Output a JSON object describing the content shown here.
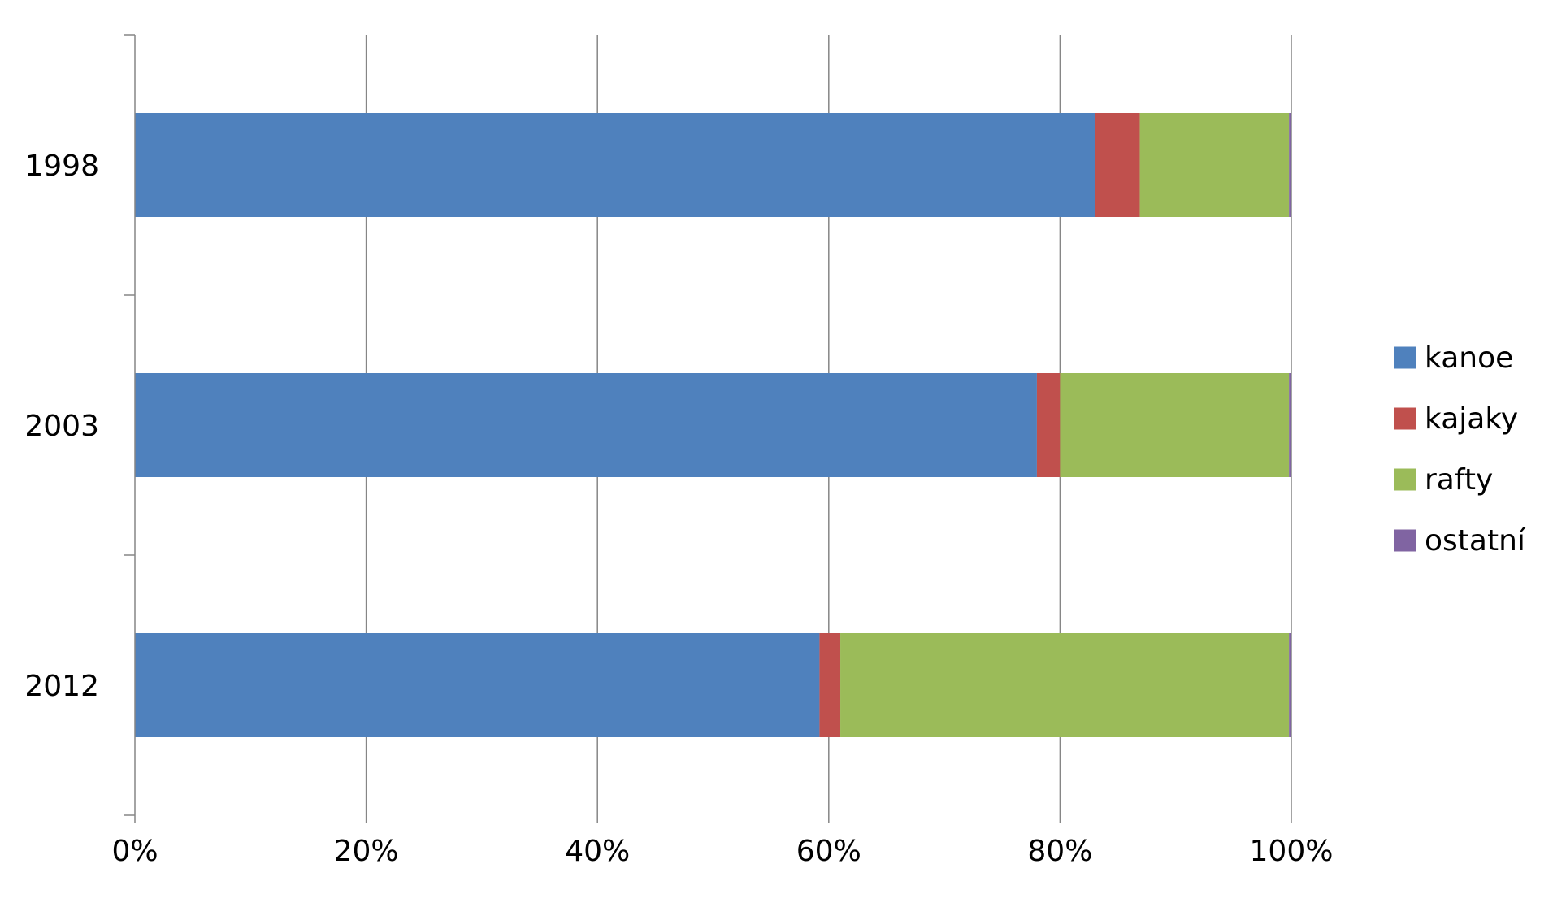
{
  "chart_data": {
    "type": "bar",
    "orientation": "horizontal",
    "stacked": "percent",
    "categories": [
      "1998",
      "2003",
      "2012"
    ],
    "series": [
      {
        "name": "kanoe",
        "color": "#4F81BD",
        "values": [
          83.0,
          78.0,
          59.2
        ]
      },
      {
        "name": "kajaky",
        "color": "#C0504D",
        "values": [
          3.9,
          2.0,
          1.8
        ]
      },
      {
        "name": "rafty",
        "color": "#9BBB59",
        "values": [
          12.9,
          19.8,
          38.8
        ]
      },
      {
        "name": "ostatní",
        "color": "#8064A2",
        "values": [
          0.2,
          0.2,
          0.2
        ]
      }
    ],
    "x_ticks": [
      "0%",
      "20%",
      "40%",
      "60%",
      "80%",
      "100%"
    ],
    "xlim": [
      0,
      100
    ],
    "grid": "vertical",
    "legend_position": "right",
    "title": "",
    "xlabel": "",
    "ylabel": ""
  }
}
